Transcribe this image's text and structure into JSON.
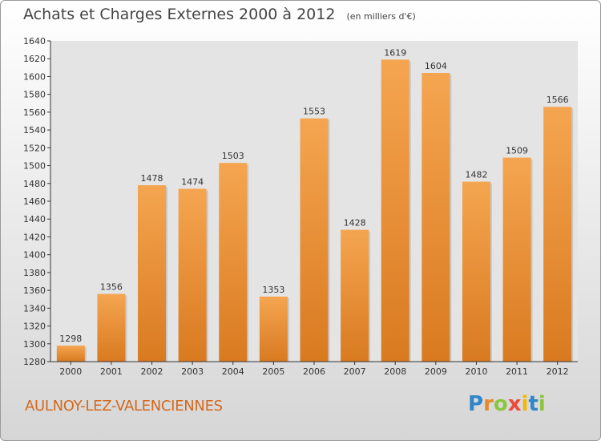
{
  "header": {
    "title": "Achats et Charges Externes 2000 à 2012",
    "unit": "(en milliers d'€)"
  },
  "footer": {
    "town": "AULNOY-LEZ-VALENCIENNES",
    "brand": [
      "P",
      "r",
      "o",
      "x",
      "i",
      "t",
      "i"
    ],
    "brand_colors": [
      "#2f86c8",
      "#e58a2a",
      "#8cc63f",
      "#e94b3c",
      "#f5b700",
      "#2f86c8",
      "#8cc63f"
    ]
  },
  "chart_data": {
    "type": "bar",
    "categories": [
      "2000",
      "2001",
      "2002",
      "2003",
      "2004",
      "2005",
      "2006",
      "2007",
      "2008",
      "2009",
      "2010",
      "2011",
      "2012"
    ],
    "values": [
      1298,
      1356,
      1478,
      1474,
      1503,
      1353,
      1553,
      1428,
      1619,
      1604,
      1482,
      1509,
      1566
    ],
    "ylim": [
      1280,
      1640
    ],
    "ytick_step": 20,
    "grid": false,
    "bar_color_light": "#f5a550",
    "bar_color_dark": "#d97a20",
    "plot_background": "#e4e4e4",
    "axis_color": "#333333"
  }
}
